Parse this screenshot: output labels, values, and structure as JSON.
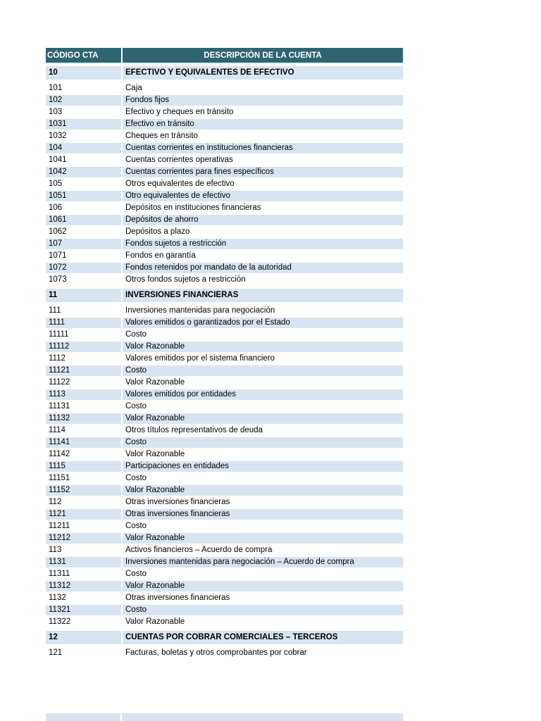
{
  "colors": {
    "header_bg": "#2F6472",
    "header_text": "#FFFFFF",
    "shaded_row_bg": "#D8E5F1",
    "plain_row_bg": "#FFFFFF",
    "text": "#000000",
    "page_bg": "#FFFFFF"
  },
  "table": {
    "columns": [
      {
        "key": "code",
        "label": "CÓDIGO CTA"
      },
      {
        "key": "desc",
        "label": "DESCRIPCIÓN DE LA CUENTA"
      }
    ],
    "rows": [
      {
        "code": "10",
        "desc": "EFECTIVO Y EQUIVALENTES DE EFECTIVO",
        "section": true
      },
      {
        "code": "101",
        "desc": "Caja"
      },
      {
        "code": "102",
        "desc": "Fondos fijos"
      },
      {
        "code": "103",
        "desc": "Efectivo y cheques en tránsito"
      },
      {
        "code": "1031",
        "desc": "Efectivo en tránsito"
      },
      {
        "code": "1032",
        "desc": "Cheques en tránsito"
      },
      {
        "code": "104",
        "desc": "Cuentas corrientes en instituciones financieras"
      },
      {
        "code": "1041",
        "desc": "Cuentas corrientes operativas"
      },
      {
        "code": "1042",
        "desc": "Cuentas corrientes para fines específicos"
      },
      {
        "code": "105",
        "desc": "Otros equivalentes de efectivo"
      },
      {
        "code": "1051",
        "desc": "Otro equivalentes de efectivo"
      },
      {
        "code": "106",
        "desc": "Depósitos en instituciones financieras"
      },
      {
        "code": "1061",
        "desc": "Depósitos de ahorro"
      },
      {
        "code": "1062",
        "desc": "Depósitos a plazo"
      },
      {
        "code": "107",
        "desc": "Fondos sujetos a restricción"
      },
      {
        "code": "1071",
        "desc": "Fondos en garantía"
      },
      {
        "code": "1072",
        "desc": "Fondos retenidos por mandato de la autoridad"
      },
      {
        "code": "1073",
        "desc": "Otros fondos sujetos a restricción"
      },
      {
        "code": "11",
        "desc": "INVERSIONES FINANCIERAS",
        "section": true
      },
      {
        "code": "111",
        "desc": "Inversiones mantenidas para negociación"
      },
      {
        "code": "1111",
        "desc": "Valores emitidos o garantizados por el Estado"
      },
      {
        "code": "11111",
        "desc": "Costo"
      },
      {
        "code": "11112",
        "desc": "Valor Razonable"
      },
      {
        "code": "1112",
        "desc": "Valores emitidos por el sistema financiero"
      },
      {
        "code": "11121",
        "desc": "Costo"
      },
      {
        "code": "11122",
        "desc": "Valor Razonable"
      },
      {
        "code": "1113",
        "desc": "Valores emitidos por entidades"
      },
      {
        "code": "11131",
        "desc": "Costo"
      },
      {
        "code": "11132",
        "desc": "Valor Razonable"
      },
      {
        "code": "1114",
        "desc": "Otros títulos representativos de deuda"
      },
      {
        "code": "11141",
        "desc": "Costo"
      },
      {
        "code": "11142",
        "desc": "Valor Razonable"
      },
      {
        "code": "1115",
        "desc": "Participaciones en entidades"
      },
      {
        "code": "11151",
        "desc": "Costo"
      },
      {
        "code": "11152",
        "desc": "Valor Razonable"
      },
      {
        "code": "112",
        "desc": "Otras inversiones financieras"
      },
      {
        "code": "1121",
        "desc": "Otras inversiones financieras"
      },
      {
        "code": "11211",
        "desc": "Costo"
      },
      {
        "code": "11212",
        "desc": "Valor Razonable"
      },
      {
        "code": "113",
        "desc": "Activos financieros – Acuerdo de compra"
      },
      {
        "code": "1131",
        "desc": "Inversiones mantenidas para negociación – Acuerdo de compra"
      },
      {
        "code": "11311",
        "desc": "Costo"
      },
      {
        "code": "11312",
        "desc": "Valor Razonable"
      },
      {
        "code": "1132",
        "desc": "Otras inversiones financieras"
      },
      {
        "code": "11321",
        "desc": "Costo"
      },
      {
        "code": "11322",
        "desc": "Valor Razonable"
      },
      {
        "code": "12",
        "desc": "CUENTAS POR COBRAR COMERCIALES – TERCEROS",
        "section": true
      },
      {
        "code": "121",
        "desc": "Facturas, boletas y otros comprobantes por cobrar"
      }
    ]
  },
  "partial_bottom_row": {
    "visible": true
  }
}
